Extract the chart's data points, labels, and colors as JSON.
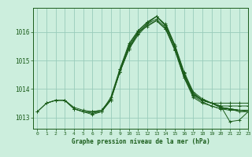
{
  "title": "Graphe pression niveau de la mer (hPa)",
  "background_color": "#cceedd",
  "grid_color": "#99ccbb",
  "line_color": "#1a5c1a",
  "xlim": [
    -0.5,
    23
  ],
  "ylim": [
    1012.6,
    1016.85
  ],
  "yticks": [
    1013,
    1014,
    1015,
    1016
  ],
  "xticks": [
    0,
    1,
    2,
    3,
    4,
    5,
    6,
    7,
    8,
    9,
    10,
    11,
    12,
    13,
    14,
    15,
    16,
    17,
    18,
    19,
    20,
    21,
    22,
    23
  ],
  "lines": [
    {
      "x": [
        0,
        1,
        2,
        3,
        4,
        5,
        6,
        7,
        8,
        9,
        10,
        11,
        12,
        13,
        14,
        15,
        16,
        17,
        18,
        19,
        20,
        21,
        22,
        23
      ],
      "y": [
        1013.2,
        1013.5,
        1013.6,
        1013.6,
        1013.3,
        1013.2,
        1013.1,
        1013.2,
        1013.7,
        1014.7,
        1015.5,
        1016.0,
        1016.3,
        1016.55,
        1016.2,
        1015.5,
        1014.5,
        1013.8,
        1013.6,
        1013.5,
        1013.5,
        1013.5,
        1013.5,
        1013.5
      ]
    },
    {
      "x": [
        0,
        1,
        2,
        3,
        4,
        5,
        6,
        7,
        8,
        9,
        10,
        11,
        12,
        13,
        14,
        15,
        16,
        17,
        18,
        19,
        20,
        21,
        22,
        23
      ],
      "y": [
        1013.2,
        1013.5,
        1013.6,
        1013.6,
        1013.3,
        1013.2,
        1013.2,
        1013.2,
        1013.6,
        1014.6,
        1015.4,
        1016.0,
        1016.2,
        1016.4,
        1016.1,
        1015.4,
        1014.4,
        1013.8,
        1013.6,
        1013.5,
        1013.4,
        1013.4,
        1013.4,
        1013.4
      ]
    },
    {
      "x": [
        1,
        2,
        3,
        4,
        5,
        6,
        7,
        8,
        9,
        10,
        11,
        12,
        13,
        14,
        15,
        16,
        17,
        18,
        19,
        20,
        21,
        22,
        23
      ],
      "y": [
        1013.5,
        1013.6,
        1013.6,
        1013.3,
        1013.2,
        1013.15,
        1013.2,
        1013.6,
        1014.6,
        1015.4,
        1015.9,
        1016.25,
        1016.4,
        1016.1,
        1015.35,
        1014.4,
        1013.7,
        1013.5,
        1013.4,
        1013.3,
        1013.3,
        1013.2,
        1013.2
      ]
    },
    {
      "x": [
        3,
        4,
        5,
        6,
        7,
        8,
        9,
        10,
        11,
        12,
        13,
        14,
        15,
        16,
        17,
        18,
        19,
        20,
        21,
        22,
        23
      ],
      "y": [
        1013.6,
        1013.35,
        1013.25,
        1013.2,
        1013.25,
        1013.6,
        1014.6,
        1015.45,
        1015.95,
        1016.3,
        1016.45,
        1016.15,
        1015.4,
        1014.45,
        1013.75,
        1013.55,
        1013.4,
        1013.3,
        1013.25,
        1013.25,
        1013.2
      ]
    },
    {
      "x": [
        6,
        7,
        8,
        9,
        10,
        11,
        12,
        13,
        14,
        15,
        16,
        17,
        18,
        19,
        20,
        21,
        22,
        23
      ],
      "y": [
        1013.2,
        1013.25,
        1013.65,
        1014.65,
        1015.55,
        1016.05,
        1016.35,
        1016.55,
        1016.25,
        1015.5,
        1014.55,
        1013.85,
        1013.6,
        1013.5,
        1013.35,
        1013.3,
        1013.25,
        1013.25
      ]
    },
    {
      "x": [
        9,
        10,
        11,
        12,
        13,
        14,
        15,
        16,
        17,
        18,
        19,
        20,
        21,
        22,
        23
      ],
      "y": [
        1014.7,
        1015.6,
        1016.05,
        1016.35,
        1016.55,
        1016.25,
        1015.5,
        1014.55,
        1013.85,
        1013.6,
        1013.5,
        1013.35,
        1013.3,
        1013.25,
        1013.25
      ]
    },
    {
      "x": [
        14,
        15,
        16,
        17,
        18,
        19,
        20,
        21,
        22,
        23
      ],
      "y": [
        1016.3,
        1015.55,
        1014.6,
        1013.9,
        1013.65,
        1013.5,
        1013.35,
        1013.3,
        1013.25,
        1013.25
      ]
    },
    {
      "x": [
        18,
        19,
        20,
        21,
        22,
        23
      ],
      "y": [
        1013.65,
        1013.5,
        1013.4,
        1012.85,
        1012.9,
        1013.2
      ]
    }
  ]
}
